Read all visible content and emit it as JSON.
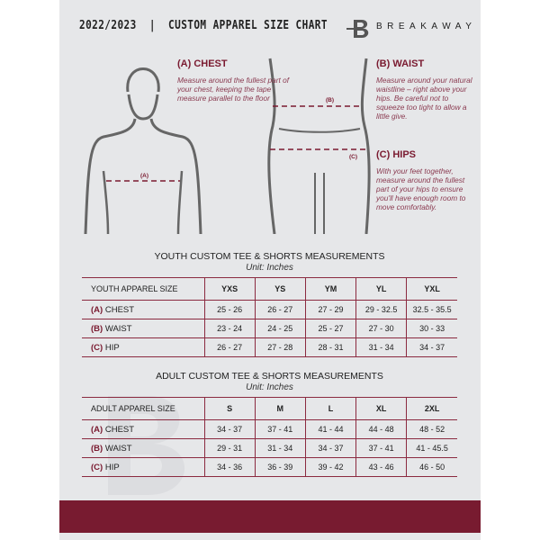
{
  "header": {
    "title": "2022/2023  |  CUSTOM APPAREL SIZE CHART",
    "brand": "BREAKAWAY"
  },
  "guide": {
    "chest": {
      "title": "(A) CHEST",
      "text": "Measure around the fullest part of your chest, keeping the tape measure parallel to the floor",
      "marker": "(A)"
    },
    "waist": {
      "title": "(B) WAIST",
      "text": "Measure around your natural waistline – right above your hips. Be careful not to squeeze too tight to allow a little give.",
      "marker": "(B)"
    },
    "hips": {
      "title": "(C) HIPS",
      "text": "With your feet together, measure around the fullest part of your hips to ensure you'll have enough room to move comfortably.",
      "marker": "(C)"
    }
  },
  "youth": {
    "title": "YOUTH CUSTOM TEE & SHORTS MEASUREMENTS",
    "unit": "Unit: Inches",
    "header": "YOUTH APPAREL SIZE",
    "sizes": [
      "YXS",
      "YS",
      "YM",
      "YL",
      "YXL"
    ],
    "rows": [
      {
        "code": "(A)",
        "name": "CHEST",
        "values": [
          "25 - 26",
          "26 - 27",
          "27 - 29",
          "29 - 32.5",
          "32.5 - 35.5"
        ]
      },
      {
        "code": "(B)",
        "name": "WAIST",
        "values": [
          "23 - 24",
          "24 - 25",
          "25 - 27",
          "27 - 30",
          "30 - 33"
        ]
      },
      {
        "code": "(C)",
        "name": "HIP",
        "values": [
          "26 - 27",
          "27 - 28",
          "28 - 31",
          "31 - 34",
          "34 - 37"
        ]
      }
    ]
  },
  "adult": {
    "title": "ADULT CUSTOM TEE & SHORTS MEASUREMENTS",
    "unit": "Unit: Inches",
    "header": "ADULT APPAREL SIZE",
    "sizes": [
      "S",
      "M",
      "L",
      "XL",
      "2XL"
    ],
    "rows": [
      {
        "code": "(A)",
        "name": "CHEST",
        "values": [
          "34 - 37",
          "37 - 41",
          "41 - 44",
          "44 - 48",
          "48 - 52"
        ]
      },
      {
        "code": "(B)",
        "name": "WAIST",
        "values": [
          "29 - 31",
          "31 - 34",
          "34 - 37",
          "37 - 41",
          "41 - 45.5"
        ]
      },
      {
        "code": "(C)",
        "name": "HIP",
        "values": [
          "34 - 36",
          "36 - 39",
          "39 - 42",
          "43 - 46",
          "46 - 50"
        ]
      }
    ]
  },
  "colors": {
    "accent": "#781b30",
    "background": "#e6e7e9"
  }
}
